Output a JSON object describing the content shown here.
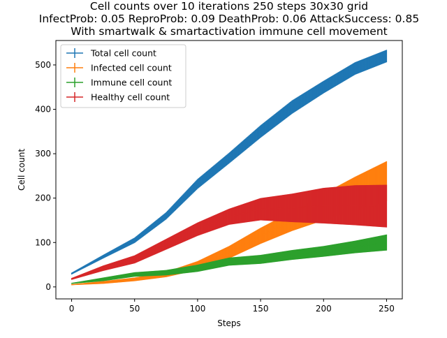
{
  "chart_data": {
    "type": "line",
    "title_lines": [
      "Cell counts over 10 iterations 250 steps 30x30 grid",
      "InfectProb: 0.05 ReproProb: 0.09 DeathProb: 0.06 AttackSuccess: 0.85",
      "With smartwalk & smartactivation immune cell movement"
    ],
    "xlabel": "Steps",
    "ylabel": "Cell count",
    "xlim": [
      -12.5,
      262.5
    ],
    "ylim": [
      -27,
      555
    ],
    "xticks": [
      0,
      50,
      100,
      150,
      200,
      250
    ],
    "yticks": [
      0,
      100,
      200,
      300,
      400,
      500
    ],
    "grid": false,
    "legend_position": "top-left",
    "error_bars": true,
    "series": [
      {
        "name": "Total cell count",
        "color": "#1f77b4",
        "x": [
          0,
          25,
          50,
          75,
          100,
          125,
          150,
          175,
          200,
          225,
          250
        ],
        "y": [
          30,
          68,
          105,
          160,
          232,
          290,
          350,
          405,
          450,
          492,
          520
        ],
        "err": [
          2,
          4,
          6,
          8,
          11,
          12,
          14,
          15,
          14,
          14,
          14
        ]
      },
      {
        "name": "Infected cell count",
        "color": "#ff7f0e",
        "x": [
          0,
          25,
          50,
          75,
          100,
          125,
          150,
          175,
          200,
          225,
          250
        ],
        "y": [
          5,
          10,
          17,
          28,
          48,
          78,
          115,
          148,
          180,
          210,
          238
        ],
        "err": [
          1,
          3,
          4,
          6,
          10,
          14,
          18,
          22,
          30,
          38,
          45
        ]
      },
      {
        "name": "Immune cell count",
        "color": "#2ca02c",
        "x": [
          0,
          25,
          50,
          75,
          100,
          125,
          150,
          175,
          200,
          225,
          250
        ],
        "y": [
          8,
          17,
          28,
          32,
          42,
          57,
          62,
          72,
          80,
          90,
          100
        ],
        "err": [
          1,
          4,
          5,
          6,
          8,
          9,
          10,
          11,
          12,
          14,
          18
        ]
      },
      {
        "name": "Healthy cell count",
        "color": "#d62728",
        "x": [
          0,
          25,
          50,
          75,
          100,
          125,
          150,
          175,
          200,
          225,
          250
        ],
        "y": [
          18,
          42,
          62,
          96,
          130,
          158,
          175,
          178,
          183,
          184,
          182
        ],
        "err": [
          2,
          6,
          9,
          12,
          15,
          18,
          25,
          32,
          40,
          45,
          48
        ]
      }
    ]
  }
}
